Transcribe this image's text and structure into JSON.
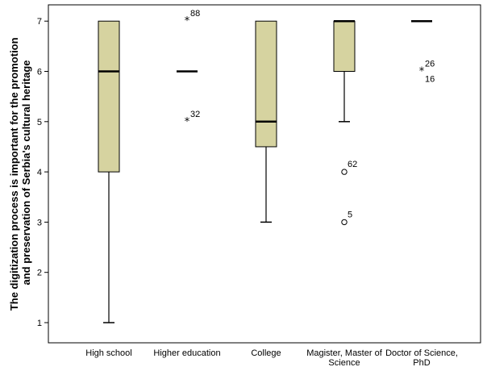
{
  "chart_data": {
    "type": "boxplot",
    "ylabel_line1": "The digitization process is important for the promotion",
    "ylabel_line2": "and preservation of Serbia's cultural heritage",
    "xlabel": "",
    "ylim": [
      0.6,
      7.35
    ],
    "yticks": [
      "1",
      "2",
      "3",
      "4",
      "5",
      "6",
      "7"
    ],
    "grid": false,
    "colors": {
      "box_fill": "#d6d3a0",
      "stroke": "#000000",
      "plot_border": "#000000"
    },
    "categories": [
      {
        "label_lines": [
          "High school"
        ],
        "q1": 4,
        "median": 6,
        "q3": 7,
        "whisker_low": 1,
        "whisker_high": 7,
        "outliers": []
      },
      {
        "label_lines": [
          "Higher education"
        ],
        "q1": 6,
        "median": 6,
        "q3": 6,
        "whisker_low": 6,
        "whisker_high": 6,
        "outliers": [
          {
            "value": 7,
            "marker": "star",
            "label": "88"
          },
          {
            "value": 5,
            "marker": "star",
            "label": "32"
          }
        ]
      },
      {
        "label_lines": [
          "College"
        ],
        "q1": 4.5,
        "median": 5,
        "q3": 7,
        "whisker_low": 3,
        "whisker_high": 7,
        "outliers": []
      },
      {
        "label_lines": [
          "Magister, Master of",
          "Science"
        ],
        "q1": 6,
        "median": 7,
        "q3": 7,
        "whisker_low": 5,
        "whisker_high": 7,
        "outliers": [
          {
            "value": 4,
            "marker": "circle",
            "label": "62"
          },
          {
            "value": 3,
            "marker": "circle",
            "label": "5"
          }
        ]
      },
      {
        "label_lines": [
          "Doctor of Science,",
          "PhD"
        ],
        "q1": 7,
        "median": 7,
        "q3": 7,
        "whisker_low": 7,
        "whisker_high": 7,
        "outliers": [
          {
            "value": 6,
            "marker": "star",
            "label": "26",
            "label2": "16"
          }
        ]
      }
    ]
  }
}
